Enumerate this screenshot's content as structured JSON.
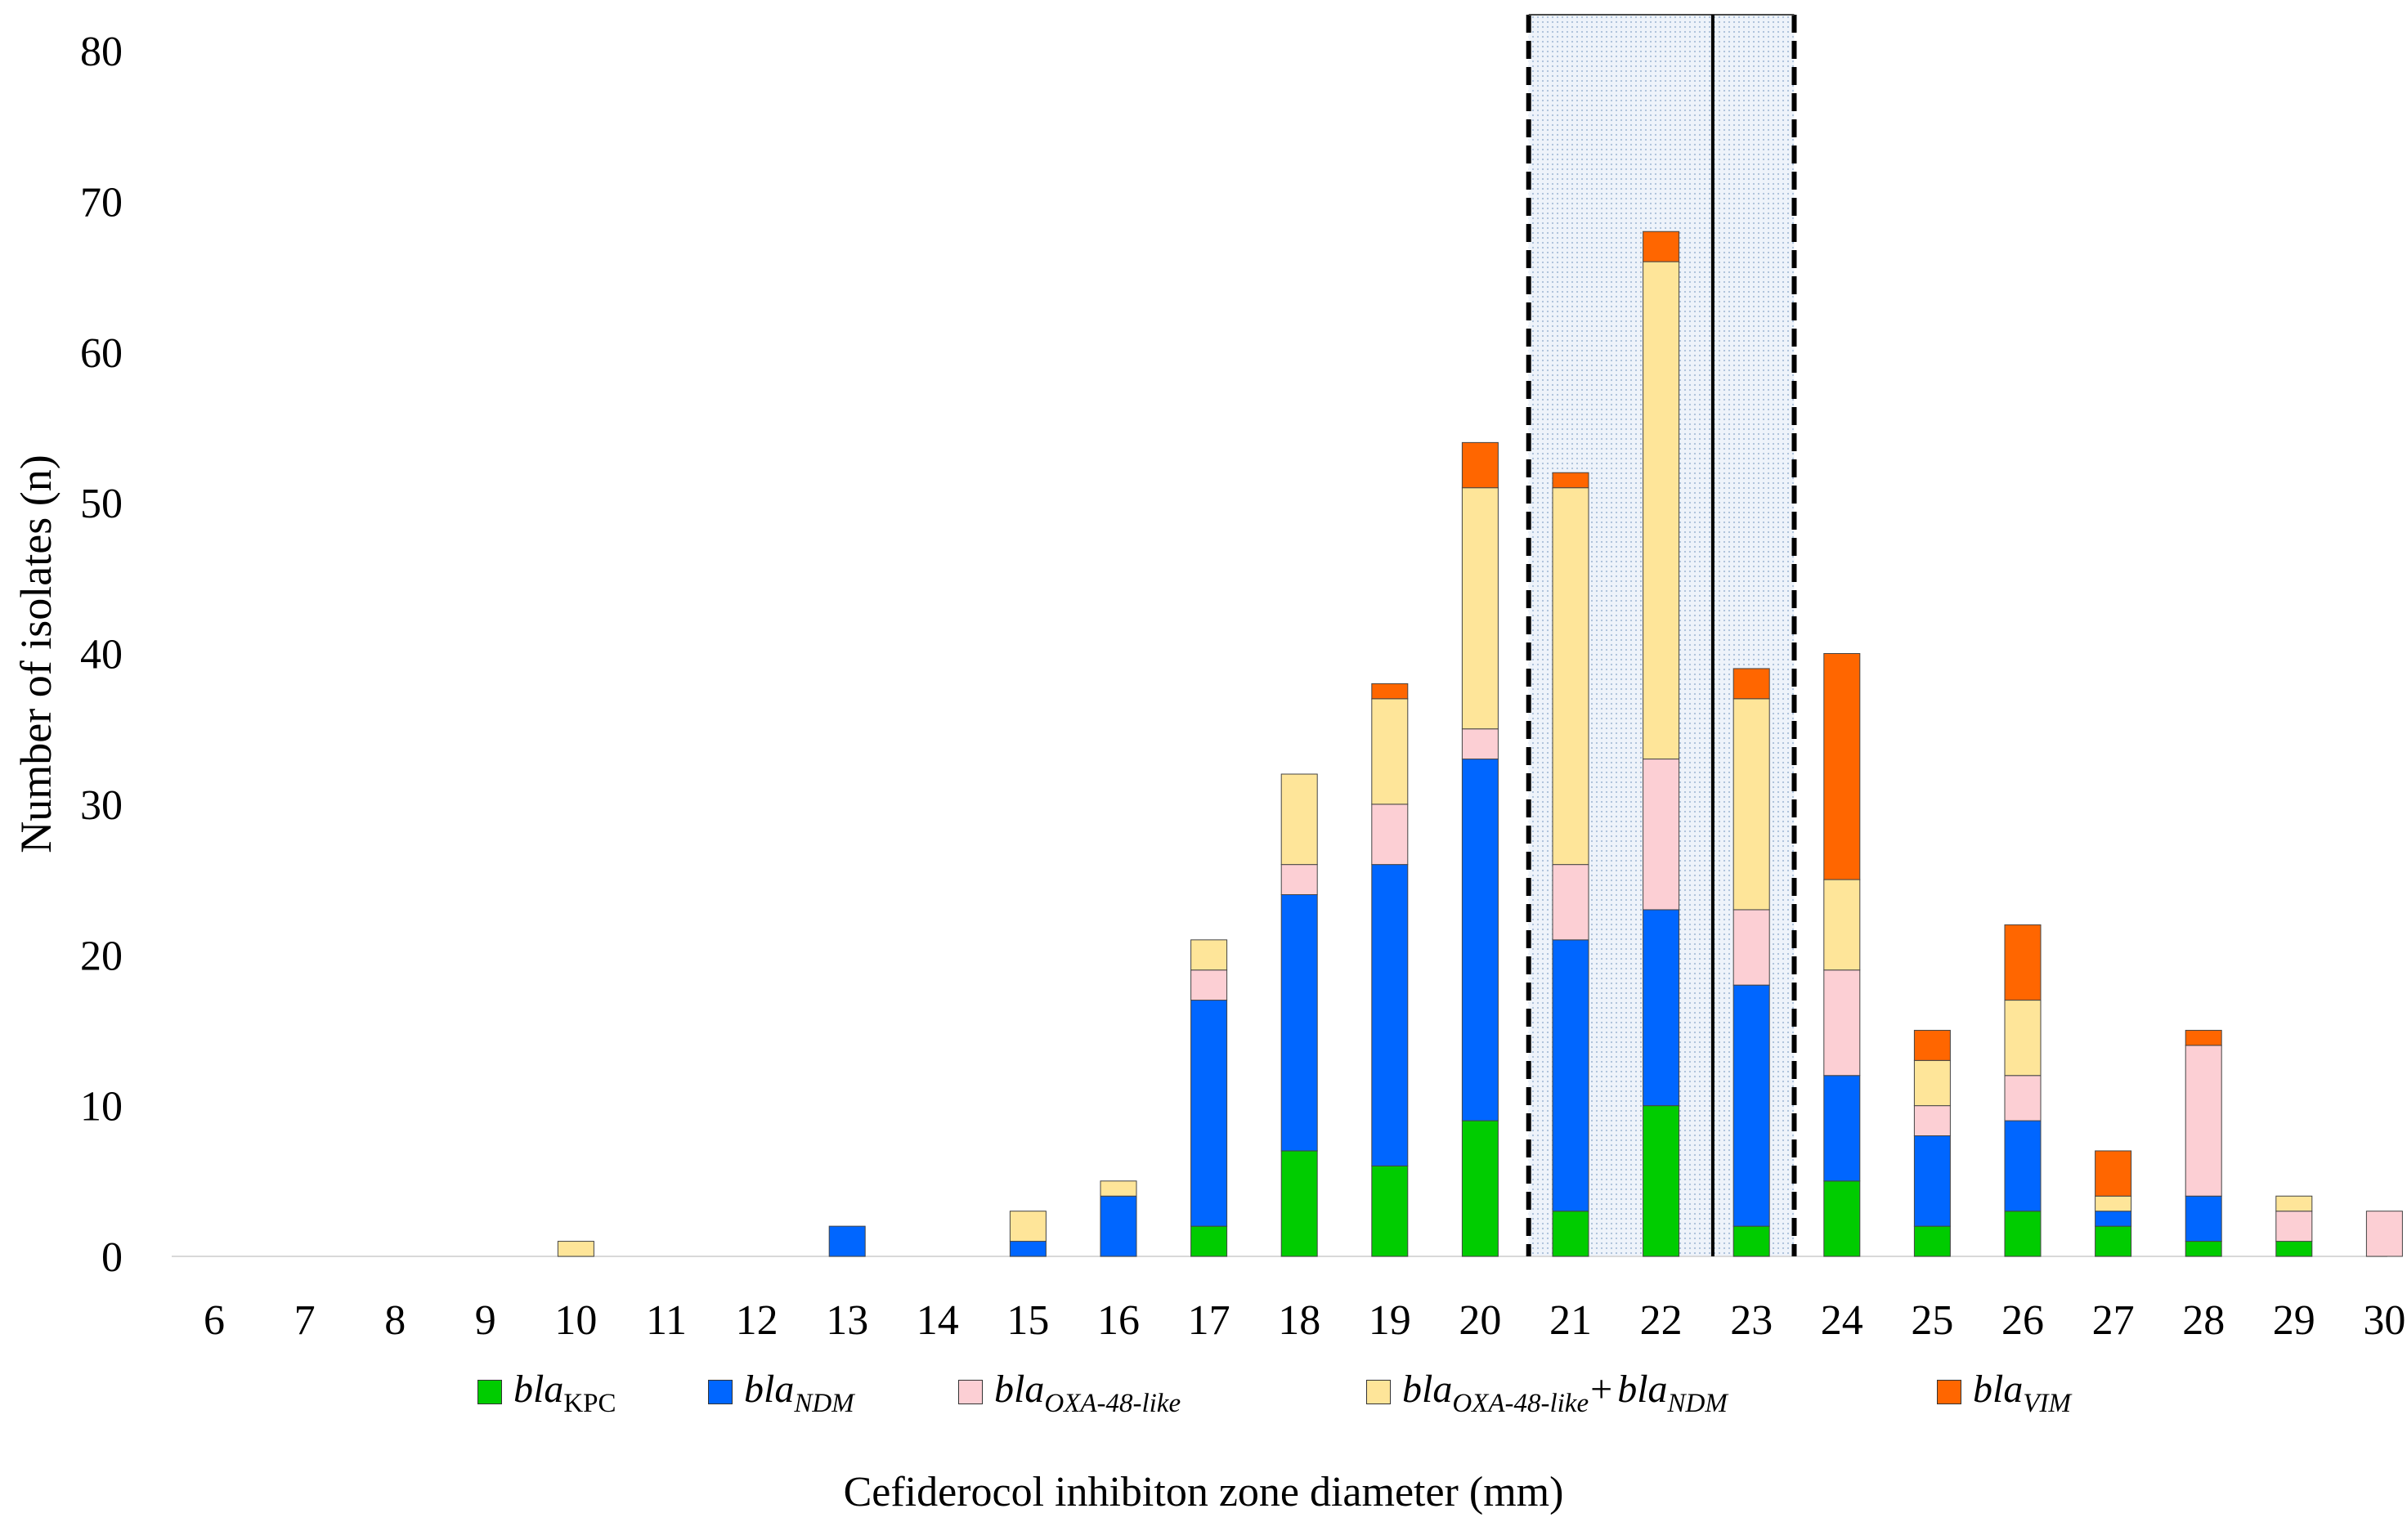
{
  "chart_data": {
    "type": "stacked-bar",
    "title": "",
    "xlabel": "Cefiderocol inhibiton zone diameter (mm)",
    "ylabel": "Number of isolates (n)",
    "ylim": [
      0,
      80
    ],
    "yticks": [
      "0",
      "10",
      "20",
      "30",
      "40",
      "50",
      "60",
      "70",
      "80"
    ],
    "categories": [
      "6",
      "7",
      "8",
      "9",
      "10",
      "11",
      "12",
      "13",
      "14",
      "15",
      "16",
      "17",
      "18",
      "19",
      "20",
      "21",
      "22",
      "23",
      "24",
      "25",
      "26",
      "27",
      "28",
      "29",
      "30"
    ],
    "series": [
      {
        "name": "blaKPC",
        "color": "#00cc00",
        "values": [
          0,
          0,
          0,
          0,
          0,
          0,
          0,
          0,
          0,
          0,
          0,
          2,
          7,
          6,
          9,
          3,
          10,
          2,
          5,
          2,
          3,
          2,
          1,
          1,
          0
        ]
      },
      {
        "name": "blaNDM",
        "color": "#0066ff",
        "values": [
          0,
          0,
          0,
          0,
          0,
          0,
          0,
          2,
          0,
          1,
          4,
          15,
          17,
          20,
          24,
          18,
          13,
          16,
          7,
          6,
          6,
          1,
          3,
          0,
          0
        ]
      },
      {
        "name": "blaOXA-48-like",
        "color": "#fccfd4",
        "values": [
          0,
          0,
          0,
          0,
          0,
          0,
          0,
          0,
          0,
          0,
          0,
          2,
          2,
          4,
          2,
          5,
          10,
          5,
          7,
          2,
          3,
          0,
          10,
          2,
          3
        ]
      },
      {
        "name": "blaOXA-48-like + blaNDM",
        "color": "#fee599",
        "values": [
          0,
          0,
          0,
          0,
          1,
          0,
          0,
          0,
          0,
          2,
          1,
          2,
          6,
          7,
          16,
          25,
          33,
          14,
          6,
          3,
          5,
          1,
          0,
          1,
          0
        ]
      },
      {
        "name": "blaVIM",
        "color": "#ff6600",
        "values": [
          0,
          0,
          0,
          0,
          0,
          0,
          0,
          0,
          0,
          0,
          0,
          0,
          0,
          1,
          3,
          1,
          2,
          2,
          15,
          2,
          5,
          3,
          1,
          0,
          0
        ]
      }
    ],
    "highlight": {
      "from": "21",
      "to": "23",
      "solid_line_between": [
        "22",
        "23"
      ]
    },
    "legend": {
      "placement": "bottom",
      "items": [
        {
          "base": "bla",
          "sub": "KPC",
          "sub_italic": false,
          "color": "#00cc00"
        },
        {
          "base": "bla",
          "sub": "NDM",
          "sub_italic": true,
          "color": "#0066ff"
        },
        {
          "base": "bla",
          "sub": "OXA-48-like",
          "sub_italic": true,
          "color": "#fccfd4"
        },
        {
          "base": "bla",
          "sub": "OXA-48-like",
          "sub_italic": true,
          "plus": "+",
          "base2": "bla",
          "sub2": "NDM",
          "color": "#fee599"
        },
        {
          "base": "bla",
          "sub": "VIM",
          "sub_italic": true,
          "color": "#ff6600"
        }
      ]
    }
  }
}
